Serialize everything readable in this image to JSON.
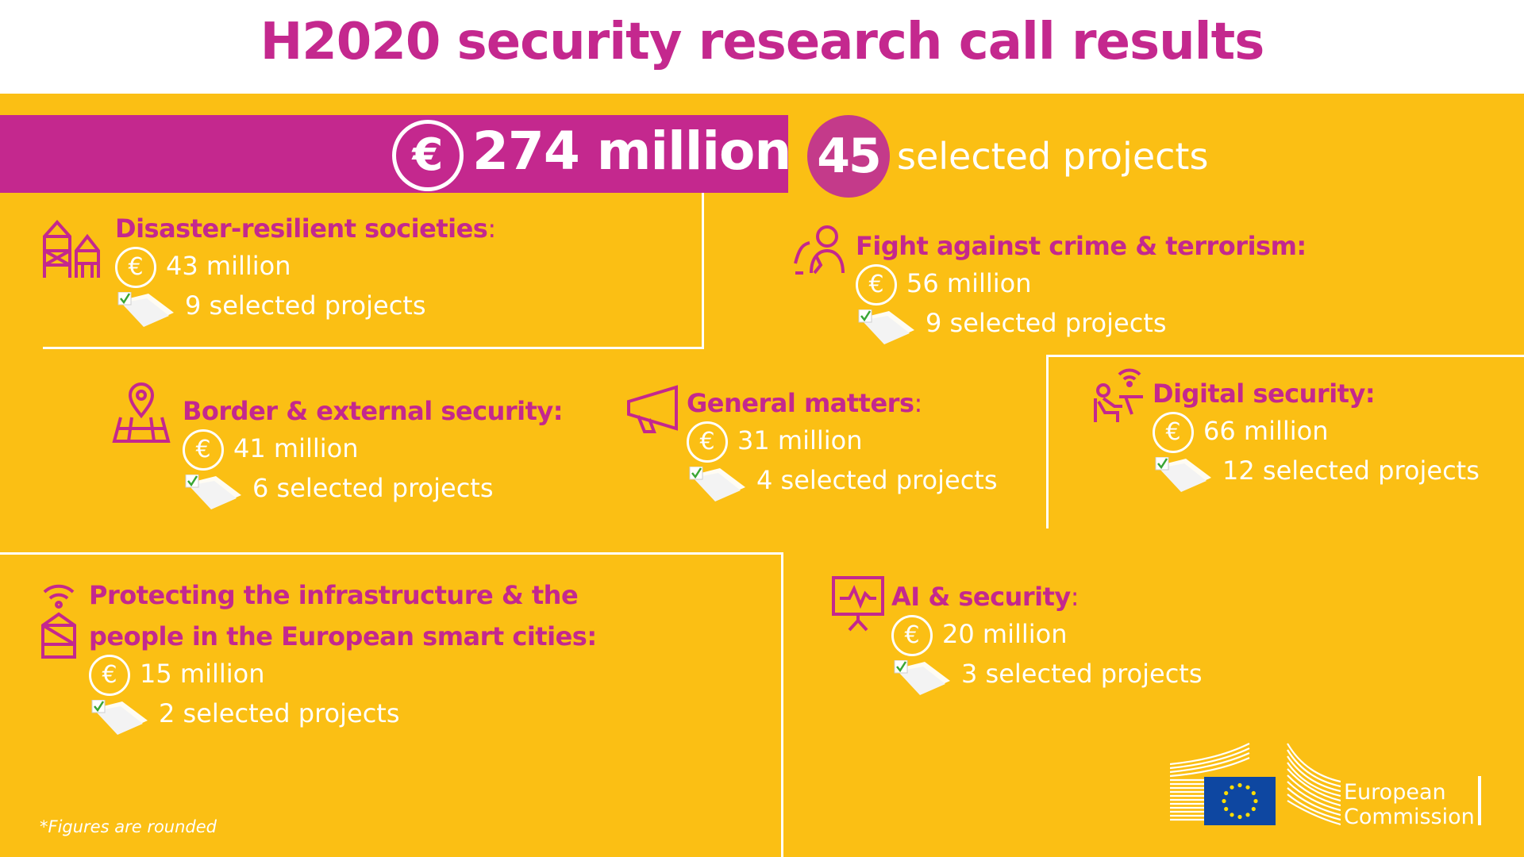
{
  "header": {
    "title": "H2020 security research call results"
  },
  "summary": {
    "euro_symbol": "€",
    "total_amount": "274 million",
    "project_count": "45",
    "project_count_label": "selected projects"
  },
  "categories": [
    {
      "id": "disaster",
      "title": "Disaster-resilient societies",
      "colon": ":",
      "title_bold_colon": false,
      "amount": "43 million",
      "projects": "9 selected projects",
      "icon": "buildings-icon"
    },
    {
      "id": "crime",
      "title": "Fight against crime & terrorism:",
      "colon": "",
      "amount": "56 million",
      "projects": "9 selected projects",
      "icon": "people-icon"
    },
    {
      "id": "border",
      "title": "Border & external security:",
      "colon": "",
      "amount": "41 million",
      "projects": "6 selected projects",
      "icon": "map-pin-icon"
    },
    {
      "id": "general",
      "title": "General matters",
      "colon": ":",
      "amount": "31 million",
      "projects": "4 selected projects",
      "icon": "megaphone-icon"
    },
    {
      "id": "digital",
      "title": "Digital security:",
      "colon": "",
      "amount": "66 million",
      "projects": "12 selected projects",
      "icon": "person-computer-wifi-icon"
    },
    {
      "id": "smartcities",
      "title": "Protecting the infrastructure & the",
      "title2": "people in the European smart cities:",
      "colon": "",
      "amount": "15 million",
      "projects": "2 selected projects",
      "icon": "wifi-building-icon"
    },
    {
      "id": "ai",
      "title": "AI & security",
      "colon": ":",
      "amount": "20 million",
      "projects": "3 selected projects",
      "icon": "monitor-chart-icon"
    }
  ],
  "footnote": "*Figures are rounded",
  "logo": {
    "line1": "European",
    "line2": "Commission"
  },
  "colors": {
    "background": "#fbbf14",
    "magenta": "#c4288e",
    "count_circle": "#c43a8a",
    "eu_blue": "#0e47a1",
    "eu_star": "#ffdd00"
  }
}
